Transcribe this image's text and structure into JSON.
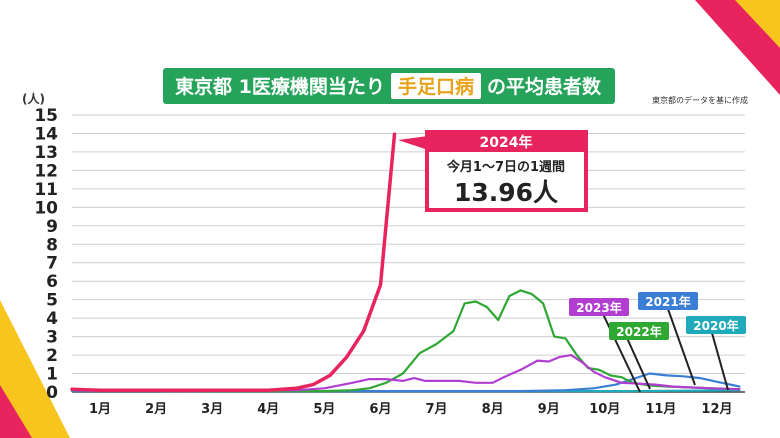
{
  "title": {
    "part1": "東京都 1医療機関当たり",
    "highlight": "手足口病",
    "part2": "の平均患者数"
  },
  "source": "東京都のデータを基に作成",
  "callout": {
    "year": "2024年",
    "period": "今月1～7日の1週間",
    "value": "13.96人"
  },
  "colors": {
    "y2024": "#e8245f",
    "y2023": "#b23ed1",
    "y2022": "#2ea832",
    "y2021": "#3a7fd5",
    "y2020": "#1eaabb",
    "title_bg": "#25a35a",
    "highlight_bg": "#ffffff",
    "highlight_fg": "#e8a21a",
    "accent_left": "#f7c51e",
    "accent_right": "#e8245f"
  },
  "chart_data": {
    "type": "line",
    "ylabel": "(人)",
    "ylim": [
      0,
      15
    ],
    "y_ticks": [
      "0",
      "1",
      "2",
      "3",
      "4",
      "5",
      "6",
      "7",
      "8",
      "9",
      "10",
      "11",
      "12",
      "13",
      "14",
      "15"
    ],
    "xlim": [
      0,
      12
    ],
    "x_ticks": [
      "1月",
      "2月",
      "3月",
      "4月",
      "5月",
      "6月",
      "7月",
      "8月",
      "9月",
      "10月",
      "11月",
      "12月"
    ],
    "series": [
      {
        "name": "2020年",
        "color_key": "y2020",
        "points": [
          [
            0.0,
            0.1
          ],
          [
            2.0,
            0.05
          ],
          [
            4.0,
            0.05
          ],
          [
            6.0,
            0.05
          ],
          [
            8.0,
            0.05
          ],
          [
            10.0,
            0.05
          ],
          [
            11.5,
            0.08
          ],
          [
            11.9,
            0.1
          ]
        ]
      },
      {
        "name": "2021年",
        "color_key": "y2021",
        "points": [
          [
            0.0,
            0.05
          ],
          [
            4.0,
            0.05
          ],
          [
            8.0,
            0.05
          ],
          [
            8.8,
            0.1
          ],
          [
            9.3,
            0.2
          ],
          [
            9.7,
            0.4
          ],
          [
            10.0,
            0.7
          ],
          [
            10.3,
            1.0
          ],
          [
            10.6,
            0.9
          ],
          [
            10.9,
            0.85
          ],
          [
            11.2,
            0.75
          ],
          [
            11.5,
            0.55
          ],
          [
            11.9,
            0.3
          ]
        ]
      },
      {
        "name": "2022年",
        "color_key": "y2022",
        "points": [
          [
            0.0,
            0.1
          ],
          [
            2.0,
            0.05
          ],
          [
            4.0,
            0.05
          ],
          [
            4.5,
            0.05
          ],
          [
            5.0,
            0.1
          ],
          [
            5.3,
            0.2
          ],
          [
            5.6,
            0.5
          ],
          [
            5.9,
            1.0
          ],
          [
            6.2,
            2.1
          ],
          [
            6.5,
            2.6
          ],
          [
            6.8,
            3.3
          ],
          [
            7.0,
            4.8
          ],
          [
            7.2,
            4.9
          ],
          [
            7.4,
            4.6
          ],
          [
            7.6,
            3.9
          ],
          [
            7.8,
            5.2
          ],
          [
            8.0,
            5.5
          ],
          [
            8.2,
            5.3
          ],
          [
            8.4,
            4.8
          ],
          [
            8.6,
            3.0
          ],
          [
            8.8,
            2.9
          ],
          [
            9.0,
            2.0
          ],
          [
            9.2,
            1.3
          ],
          [
            9.4,
            1.2
          ],
          [
            9.6,
            0.9
          ],
          [
            9.8,
            0.8
          ],
          [
            10.0,
            0.5
          ],
          [
            10.3,
            0.35
          ],
          [
            10.6,
            0.3
          ],
          [
            11.0,
            0.25
          ],
          [
            11.4,
            0.2
          ],
          [
            11.9,
            0.15
          ]
        ]
      },
      {
        "name": "2023年",
        "color_key": "y2023",
        "points": [
          [
            0.0,
            0.1
          ],
          [
            2.0,
            0.05
          ],
          [
            4.0,
            0.1
          ],
          [
            4.5,
            0.2
          ],
          [
            5.0,
            0.5
          ],
          [
            5.3,
            0.7
          ],
          [
            5.6,
            0.7
          ],
          [
            5.9,
            0.6
          ],
          [
            6.1,
            0.75
          ],
          [
            6.3,
            0.6
          ],
          [
            6.6,
            0.6
          ],
          [
            6.9,
            0.6
          ],
          [
            7.2,
            0.5
          ],
          [
            7.5,
            0.5
          ],
          [
            7.7,
            0.8
          ],
          [
            8.0,
            1.2
          ],
          [
            8.3,
            1.7
          ],
          [
            8.5,
            1.65
          ],
          [
            8.7,
            1.9
          ],
          [
            8.9,
            2.0
          ],
          [
            9.1,
            1.6
          ],
          [
            9.3,
            1.1
          ],
          [
            9.5,
            0.8
          ],
          [
            9.8,
            0.5
          ],
          [
            10.1,
            0.45
          ],
          [
            10.4,
            0.4
          ],
          [
            10.7,
            0.3
          ],
          [
            11.0,
            0.25
          ],
          [
            11.4,
            0.2
          ],
          [
            11.9,
            0.15
          ]
        ]
      },
      {
        "name": "2024年",
        "color_key": "y2024",
        "points": [
          [
            0.0,
            0.15
          ],
          [
            0.5,
            0.1
          ],
          [
            1.0,
            0.1
          ],
          [
            2.0,
            0.1
          ],
          [
            3.0,
            0.1
          ],
          [
            3.5,
            0.1
          ],
          [
            4.0,
            0.2
          ],
          [
            4.3,
            0.4
          ],
          [
            4.6,
            0.9
          ],
          [
            4.9,
            1.9
          ],
          [
            5.2,
            3.3
          ],
          [
            5.5,
            5.8
          ],
          [
            5.75,
            13.96
          ]
        ]
      }
    ]
  }
}
